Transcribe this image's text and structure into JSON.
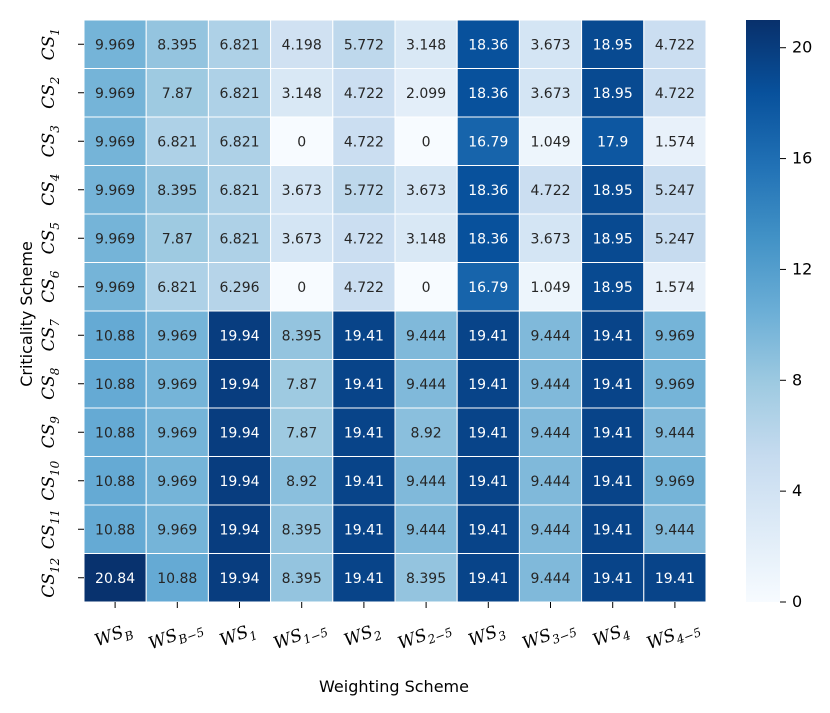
{
  "chart_data": {
    "type": "heatmap",
    "xlabel": "Weighting Scheme",
    "ylabel": "Criticality Scheme",
    "columns": [
      {
        "base": "WS",
        "sub": "B"
      },
      {
        "base": "WS",
        "sub": "B−5"
      },
      {
        "base": "WS",
        "sub": "1"
      },
      {
        "base": "WS",
        "sub": "1−5"
      },
      {
        "base": "WS",
        "sub": "2"
      },
      {
        "base": "WS",
        "sub": "2−5"
      },
      {
        "base": "WS",
        "sub": "3"
      },
      {
        "base": "WS",
        "sub": "3−5"
      },
      {
        "base": "WS",
        "sub": "4"
      },
      {
        "base": "WS",
        "sub": "4−5"
      }
    ],
    "rows": [
      {
        "base": "CS",
        "sub": "1"
      },
      {
        "base": "CS",
        "sub": "2"
      },
      {
        "base": "CS",
        "sub": "3"
      },
      {
        "base": "CS",
        "sub": "4"
      },
      {
        "base": "CS",
        "sub": "5"
      },
      {
        "base": "CS",
        "sub": "6"
      },
      {
        "base": "CS",
        "sub": "7"
      },
      {
        "base": "CS",
        "sub": "8"
      },
      {
        "base": "CS",
        "sub": "9"
      },
      {
        "base": "CS",
        "sub": "10"
      },
      {
        "base": "CS",
        "sub": "11"
      },
      {
        "base": "CS",
        "sub": "12"
      }
    ],
    "values": [
      [
        "9.969",
        "8.395",
        "6.821",
        "4.198",
        "5.772",
        "3.148",
        "18.36",
        "3.673",
        "18.95",
        "4.722"
      ],
      [
        "9.969",
        "7.87",
        "6.821",
        "3.148",
        "4.722",
        "2.099",
        "18.36",
        "3.673",
        "18.95",
        "4.722"
      ],
      [
        "9.969",
        "6.821",
        "6.821",
        "0",
        "4.722",
        "0",
        "16.79",
        "1.049",
        "17.9",
        "1.574"
      ],
      [
        "9.969",
        "8.395",
        "6.821",
        "3.673",
        "5.772",
        "3.673",
        "18.36",
        "4.722",
        "18.95",
        "5.247"
      ],
      [
        "9.969",
        "7.87",
        "6.821",
        "3.673",
        "4.722",
        "3.148",
        "18.36",
        "3.673",
        "18.95",
        "5.247"
      ],
      [
        "9.969",
        "6.821",
        "6.296",
        "0",
        "4.722",
        "0",
        "16.79",
        "1.049",
        "18.95",
        "1.574"
      ],
      [
        "10.88",
        "9.969",
        "19.94",
        "8.395",
        "19.41",
        "9.444",
        "19.41",
        "9.444",
        "19.41",
        "9.969"
      ],
      [
        "10.88",
        "9.969",
        "19.94",
        "7.87",
        "19.41",
        "9.444",
        "19.41",
        "9.444",
        "19.41",
        "9.969"
      ],
      [
        "10.88",
        "9.969",
        "19.94",
        "7.87",
        "19.41",
        "8.92",
        "19.41",
        "9.444",
        "19.41",
        "9.444"
      ],
      [
        "10.88",
        "9.969",
        "19.94",
        "8.92",
        "19.41",
        "9.444",
        "19.41",
        "9.444",
        "19.41",
        "9.969"
      ],
      [
        "10.88",
        "9.969",
        "19.94",
        "8.395",
        "19.41",
        "9.444",
        "19.41",
        "9.444",
        "19.41",
        "9.444"
      ],
      [
        "20.84",
        "10.88",
        "19.94",
        "8.395",
        "19.41",
        "8.395",
        "19.41",
        "9.444",
        "19.41",
        "19.41"
      ]
    ],
    "colorbar": {
      "vmin": 0,
      "vmax": 21,
      "ticks": [
        "0",
        "4",
        "8",
        "12",
        "16",
        "20"
      ],
      "colormap": "Blues",
      "colors": [
        "#f7fbff",
        "#deebf7",
        "#c6dbef",
        "#9ecae1",
        "#6baed6",
        "#4292c6",
        "#2171b5",
        "#08519c",
        "#08306b"
      ]
    },
    "grid_line_color": "#ffffff"
  }
}
